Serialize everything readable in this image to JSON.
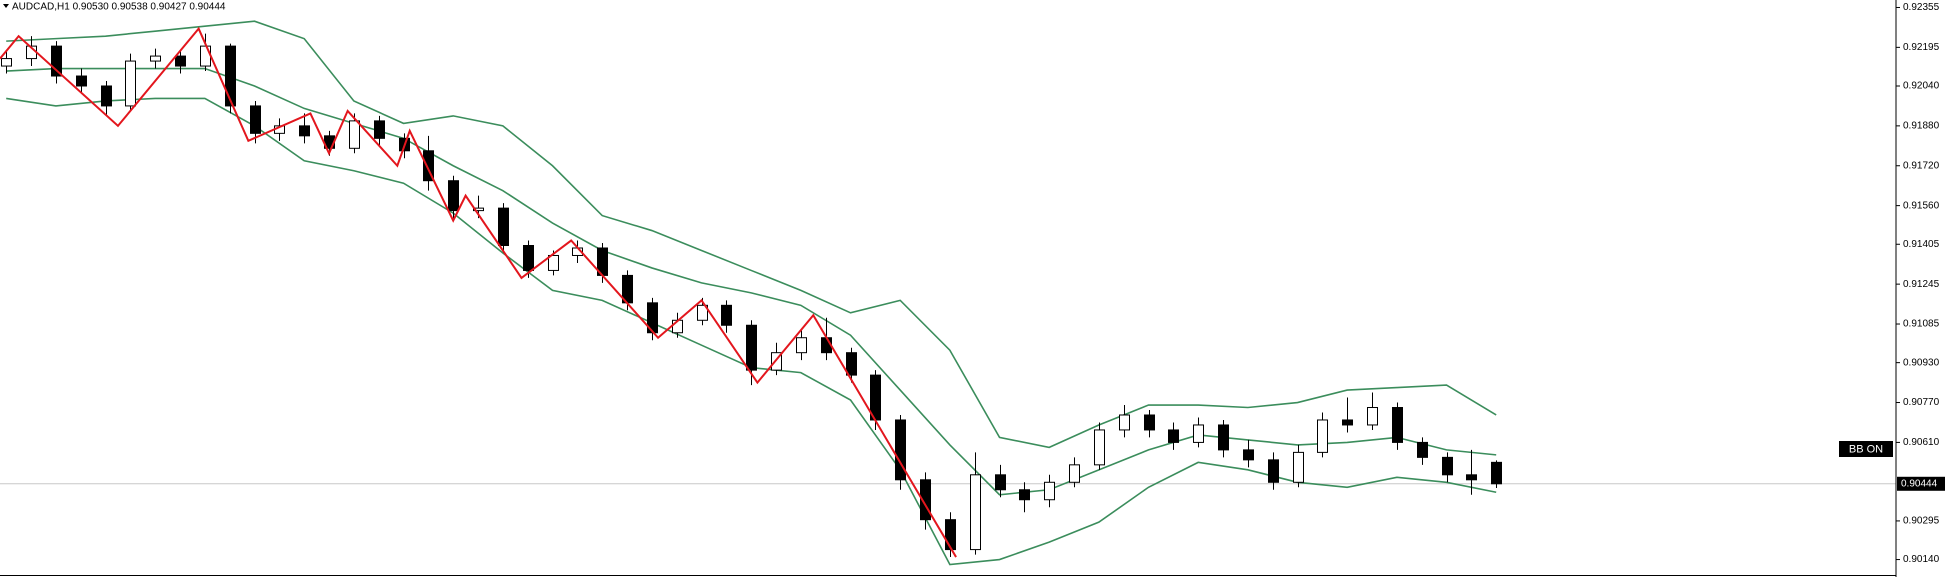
{
  "chart_data": {
    "type": "candlestick",
    "title": "AUDCAD,H1 0.90530 0.90538 0.90427 0.90444",
    "indicator_label": "BB ON",
    "last_price": 0.90444,
    "ylim": [
      0.9007,
      0.92385
    ],
    "xlim": [
      -0.25,
      76.1
    ],
    "yticks": [
      0.92355,
      0.92195,
      {
        "value": 0.9204,
        "label": "0.92040"
      },
      {
        "value": 0.9188,
        "label": "0.91880"
      },
      {
        "value": 0.9172,
        "label": "0.91720"
      },
      {
        "value": 0.9156,
        "label": "0.91560"
      },
      0.91405,
      0.91245,
      0.91085,
      {
        "value": 0.9093,
        "label": "0.90930"
      },
      {
        "value": 0.9077,
        "label": "0.90770"
      },
      {
        "value": 0.9061,
        "label": "0.90610"
      },
      0.90295,
      {
        "value": 0.9014,
        "label": "0.90140"
      }
    ],
    "x": [
      0,
      1,
      2,
      3,
      4,
      5,
      6,
      7,
      8,
      9,
      10,
      11,
      12,
      13,
      14,
      15,
      16,
      17,
      18,
      19,
      20,
      21,
      22,
      23,
      24,
      25,
      26,
      27,
      28,
      29,
      30,
      31,
      32,
      33,
      34,
      35,
      36,
      37,
      38,
      39,
      40,
      41,
      42,
      43,
      44,
      45,
      46,
      47,
      48,
      49,
      50,
      51,
      52,
      53,
      54,
      55,
      56,
      57,
      58,
      59,
      60
    ],
    "open": [
      0.9212,
      0.9215,
      0.922,
      0.9208,
      0.9204,
      0.9196,
      0.9214,
      0.9216,
      0.9212,
      0.922,
      0.9196,
      0.9185,
      0.9188,
      0.9184,
      0.9179,
      0.919,
      0.9183,
      0.9178,
      0.9166,
      0.9154,
      0.9155,
      0.914,
      0.913,
      0.9136,
      0.9139,
      0.9128,
      0.9117,
      0.9105,
      0.911,
      0.9116,
      0.9108,
      0.909,
      0.9097,
      0.9103,
      0.9097,
      0.9088,
      0.907,
      0.9046,
      0.903,
      0.9018,
      0.9048,
      0.9042,
      0.9038,
      0.9045,
      0.9052,
      0.9066,
      0.9072,
      0.9066,
      0.9061,
      0.9068,
      0.9058,
      0.9054,
      0.9045,
      0.9057,
      0.907,
      0.9068,
      0.9075,
      0.9061,
      0.9055,
      0.9048,
      0.9053
    ],
    "close": [
      0.9215,
      0.922,
      0.9208,
      0.9204,
      0.9196,
      0.9214,
      0.9216,
      0.9212,
      0.922,
      0.9196,
      0.9185,
      0.9188,
      0.9184,
      0.9179,
      0.919,
      0.9183,
      0.9178,
      0.9166,
      0.9154,
      0.9155,
      0.914,
      0.913,
      0.9136,
      0.9139,
      0.9128,
      0.9117,
      0.9105,
      0.911,
      0.9116,
      0.9108,
      0.909,
      0.9097,
      0.9103,
      0.9097,
      0.9088,
      0.907,
      0.9046,
      0.903,
      0.9018,
      0.9048,
      0.9042,
      0.9038,
      0.9045,
      0.9052,
      0.9066,
      0.9072,
      0.9066,
      0.9061,
      0.9068,
      0.9058,
      0.9054,
      0.9045,
      0.9057,
      0.907,
      0.9068,
      0.9075,
      0.9061,
      0.9055,
      0.9048,
      0.9046,
      0.90444
    ],
    "high": [
      0.9218,
      0.9224,
      0.9222,
      0.9211,
      0.9206,
      0.9217,
      0.9219,
      0.9218,
      0.9225,
      0.9221,
      0.9198,
      0.9191,
      0.9193,
      0.9186,
      0.9193,
      0.9192,
      0.9185,
      0.9184,
      0.9168,
      0.916,
      0.9157,
      0.9142,
      0.9138,
      0.9142,
      0.9141,
      0.913,
      0.9119,
      0.9113,
      0.9119,
      0.9118,
      0.911,
      0.9101,
      0.9106,
      0.9111,
      0.9099,
      0.909,
      0.9072,
      0.9049,
      0.9033,
      0.9057,
      0.9052,
      0.9045,
      0.9048,
      0.9055,
      0.9069,
      0.9076,
      0.9074,
      0.9069,
      0.9071,
      0.907,
      0.9062,
      0.9057,
      0.906,
      0.9073,
      0.9079,
      0.9081,
      0.9077,
      0.9063,
      0.9057,
      0.9058,
      0.90538
    ],
    "low": [
      0.9209,
      0.9212,
      0.9205,
      0.9201,
      0.9192,
      0.9194,
      0.9211,
      0.9209,
      0.921,
      0.9193,
      0.9181,
      0.9182,
      0.9181,
      0.9176,
      0.9177,
      0.918,
      0.9175,
      0.9162,
      0.915,
      0.9151,
      0.9137,
      0.9127,
      0.9128,
      0.9133,
      0.9125,
      0.9114,
      0.9102,
      0.9103,
      0.9108,
      0.9105,
      0.9084,
      0.9088,
      0.9094,
      0.9094,
      0.9085,
      0.9066,
      0.9042,
      0.9026,
      0.9015,
      0.9016,
      0.9039,
      0.9033,
      0.9035,
      0.9043,
      0.905,
      0.9063,
      0.9063,
      0.9058,
      0.9059,
      0.9055,
      0.9051,
      0.9042,
      0.9043,
      0.9055,
      0.9065,
      0.9066,
      0.9058,
      0.9052,
      0.9045,
      0.904,
      0.90427
    ],
    "bull_color": "#ffffff",
    "bear_color": "#000000",
    "bands": {
      "color": "#3b8d5c",
      "x": [
        0,
        2,
        4,
        6,
        8,
        10,
        12,
        14,
        16,
        18,
        20,
        22,
        24,
        26,
        28,
        30,
        32,
        34,
        36,
        38,
        40,
        42,
        44,
        46,
        48,
        50,
        52,
        54,
        56,
        58,
        60
      ],
      "upper": [
        0.9222,
        0.9223,
        0.9224,
        0.9226,
        0.9228,
        0.923,
        0.9223,
        0.9198,
        0.9189,
        0.9192,
        0.9188,
        0.9172,
        0.9152,
        0.9146,
        0.9138,
        0.913,
        0.9122,
        0.9113,
        0.9118,
        0.9098,
        0.9063,
        0.9059,
        0.9068,
        0.9076,
        0.9076,
        0.9075,
        0.9077,
        0.9082,
        0.9083,
        0.9084,
        0.9072
      ],
      "middle": [
        0.921,
        0.9211,
        0.9211,
        0.9211,
        0.9211,
        0.9204,
        0.9195,
        0.9189,
        0.9183,
        0.9172,
        0.9162,
        0.9149,
        0.9138,
        0.9131,
        0.9125,
        0.9121,
        0.9116,
        0.9104,
        0.9082,
        0.906,
        0.904,
        0.9042,
        0.905,
        0.9058,
        0.9064,
        0.9062,
        0.906,
        0.9061,
        0.9063,
        0.9058,
        0.9056
      ],
      "lower": [
        0.9199,
        0.9196,
        0.9198,
        0.9199,
        0.9199,
        0.9188,
        0.9174,
        0.917,
        0.9165,
        0.9153,
        0.9137,
        0.9122,
        0.9118,
        0.9109,
        0.91,
        0.9091,
        0.9089,
        0.9078,
        0.905,
        0.9012,
        0.9014,
        0.9021,
        0.9029,
        0.9043,
        0.9053,
        0.905,
        0.9045,
        0.9043,
        0.9047,
        0.9045,
        0.9041
      ]
    },
    "zigzag": {
      "color": "#e3161d",
      "x": [
        -0.25,
        0.5,
        4.5,
        7.75,
        9.75,
        12.25,
        13,
        13.75,
        15.75,
        16.25,
        18,
        18.5,
        20.75,
        22.75,
        26.25,
        28,
        30.25,
        32.5,
        38.25
      ],
      "values": [
        0.9215,
        0.9224,
        0.9188,
        0.9227,
        0.9182,
        0.9193,
        0.9177,
        0.9194,
        0.9172,
        0.9186,
        0.915,
        0.916,
        0.9127,
        0.9142,
        0.9103,
        0.9118,
        0.9085,
        0.9112,
        0.9015
      ]
    }
  }
}
